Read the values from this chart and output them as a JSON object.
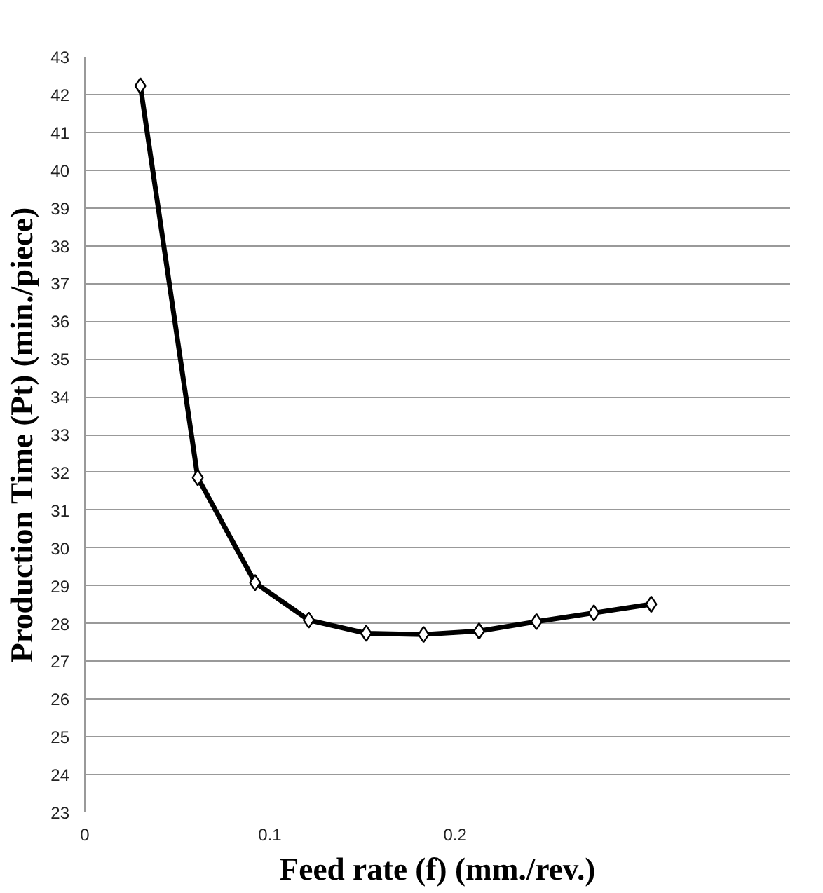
{
  "chart_data": {
    "type": "line",
    "xlabel": "Feed rate (f) (mm./rev.)",
    "ylabel": "Production Time (Pt) (min./piece)",
    "x": [
      0.03,
      0.061,
      0.092,
      0.121,
      0.152,
      0.183,
      0.213,
      0.244,
      0.275,
      0.306
    ],
    "series": [
      {
        "color": "#000000",
        "values": [
          42.23,
          31.86,
          29.08,
          28.09,
          27.74,
          27.71,
          27.8,
          28.05,
          28.28,
          28.51
        ]
      }
    ],
    "xlim": [
      0,
      0.381
    ],
    "xticks": [
      0,
      0.1,
      0.2
    ],
    "ylim": [
      23,
      43
    ],
    "yticks": [
      23,
      24,
      25,
      26,
      27,
      28,
      29,
      30,
      31,
      32,
      33,
      34,
      35,
      36,
      37,
      38,
      39,
      40,
      41,
      42,
      43
    ],
    "grid": "y",
    "marker": "diamond",
    "line_style": "solid"
  }
}
